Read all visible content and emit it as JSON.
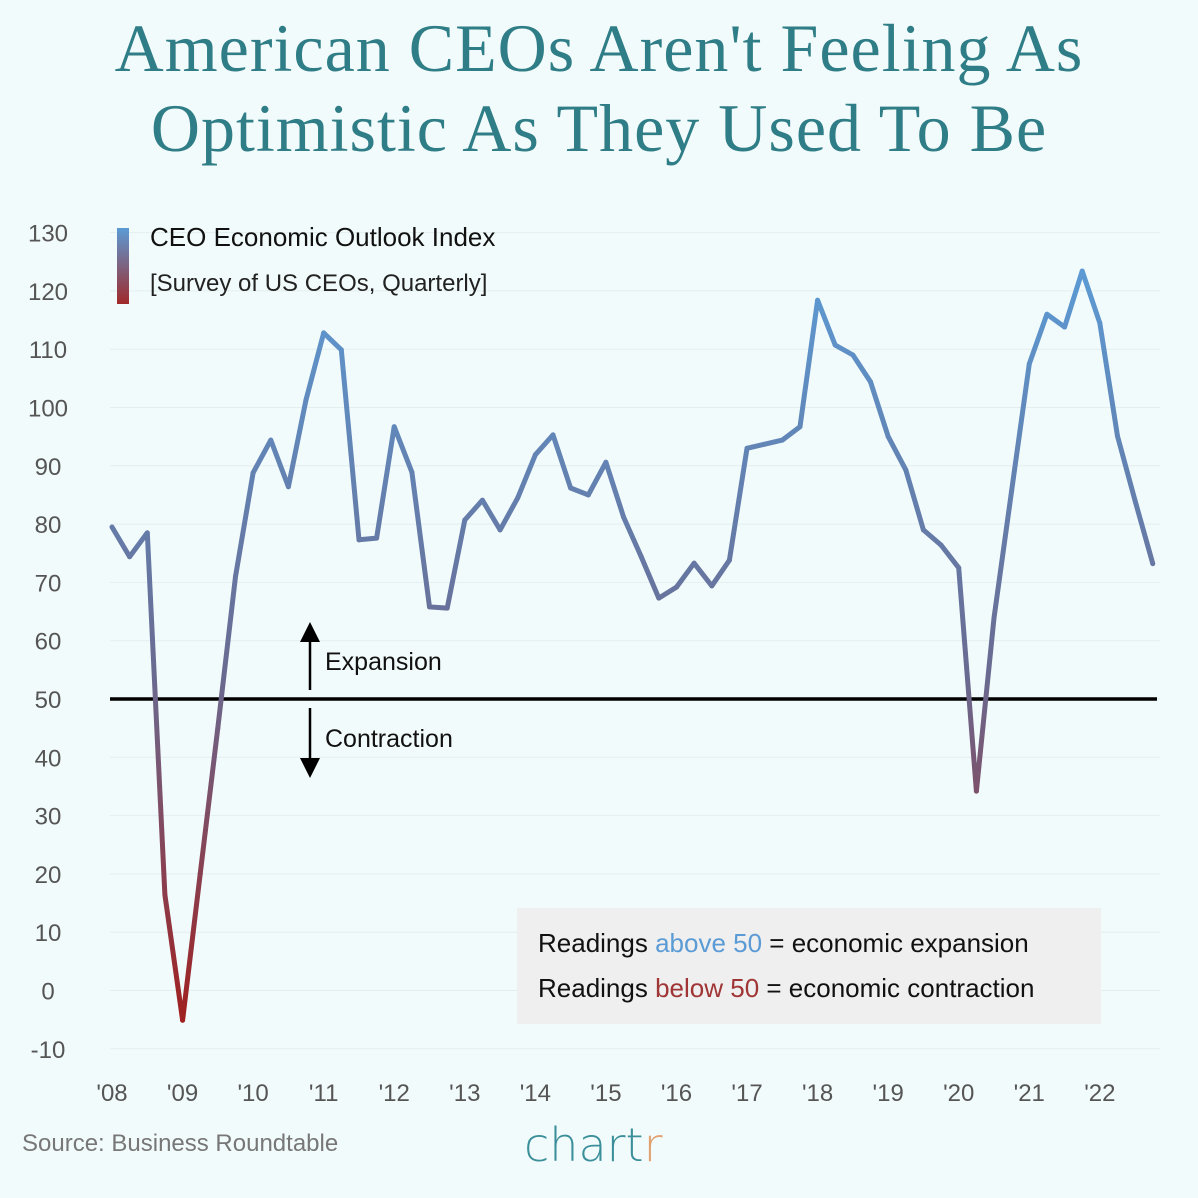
{
  "title_line1": "American CEOs Aren't Feeling As",
  "title_line2": "Optimistic As They Used To Be",
  "legend": {
    "title": "CEO Economic Outlook Index",
    "subtitle": "[Survey of US CEOs, Quarterly]"
  },
  "annotations": {
    "expansion": "Expansion",
    "contraction": "Contraction"
  },
  "note": {
    "line1_pre": "Readings ",
    "line1_hl": "above 50",
    "line1_post": " = economic expansion",
    "line2_pre": "Readings ",
    "line2_hl": "below 50",
    "line2_post": " = economic contraction"
  },
  "source": "Source: Business Roundtable",
  "logo": {
    "main": "chart",
    "accent": "r"
  },
  "colors": {
    "title": "#2f7d86",
    "high": "#5b9bd5",
    "low": "#a02a2a",
    "background": "#f2fbfb"
  },
  "chart_data": {
    "type": "line",
    "title": "American CEOs Aren't Feeling As Optimistic As They Used To Be",
    "xlabel": "",
    "ylabel": "",
    "ylim": [
      -10,
      130
    ],
    "yticks": [
      130,
      120,
      110,
      100,
      90,
      80,
      70,
      60,
      50,
      40,
      30,
      20,
      10,
      0,
      -10
    ],
    "xtick_labels": [
      "'08",
      "'09",
      "'10",
      "'11",
      "'12",
      "'13",
      "'14",
      "'15",
      "'16",
      "'17",
      "'18",
      "'19",
      "'20",
      "'21",
      "'22"
    ],
    "reference_line": 50,
    "grid": true,
    "series": [
      {
        "name": "CEO Economic Outlook Index",
        "start": "2008 Q1",
        "frequency": "quarterly",
        "values": [
          79.5,
          74.4,
          78.5,
          16.4,
          -5.1,
          20,
          45,
          71,
          88.8,
          94.4,
          86.4,
          101.3,
          112.8,
          109.9,
          77.3,
          77.6,
          96.7,
          88.9,
          65.8,
          65.6,
          80.7,
          84.1,
          79,
          84.5,
          91.9,
          95.3,
          86.2,
          85,
          90.6,
          81.2,
          74.4,
          67.3,
          69.2,
          73.3,
          69.4,
          73.8,
          93,
          93.7,
          94.4,
          96.7,
          118.4,
          110.7,
          109,
          104.4,
          95,
          89.3,
          79,
          76.4,
          72.5,
          34.2,
          63.9,
          85.7,
          107.5,
          116,
          113.8,
          123.4,
          114.5,
          95.1,
          84,
          73.2
        ]
      }
    ]
  }
}
